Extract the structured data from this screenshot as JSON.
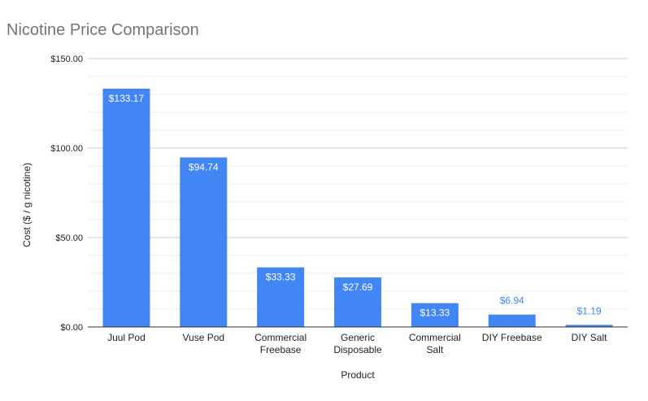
{
  "chart_data": {
    "type": "bar",
    "title": "Nicotine Price Comparison",
    "xlabel": "Product",
    "ylabel": "Cost ($ / g nicotine)",
    "categories": [
      [
        "Juul Pod"
      ],
      [
        "Vuse Pod"
      ],
      [
        "Commercial",
        "Freebase"
      ],
      [
        "Generic",
        "Disposable"
      ],
      [
        "Commercial",
        "Salt"
      ],
      [
        "DIY Freebase"
      ],
      [
        "DIY Salt"
      ]
    ],
    "values": [
      133.17,
      94.74,
      33.33,
      27.69,
      13.33,
      6.94,
      1.19
    ],
    "value_labels": [
      "$133.17",
      "$94.74",
      "$33.33",
      "$27.69",
      "$13.33",
      "$6.94",
      "$1.19"
    ],
    "ylim": [
      0,
      150
    ],
    "yticks": [
      0,
      50,
      100,
      150
    ],
    "ytick_labels": [
      "$0.00",
      "$50.00",
      "$100.00",
      "$150.00"
    ],
    "minor_gridlines": true,
    "legend": "none"
  },
  "colors": {
    "bar": "#4285f4",
    "title": "#757575",
    "axis_text": "#222222",
    "gridline_major": "#cccccc",
    "gridline_minor": "#eeeeee",
    "label_inside": "#ffffff",
    "label_outside": "#4285f4"
  }
}
